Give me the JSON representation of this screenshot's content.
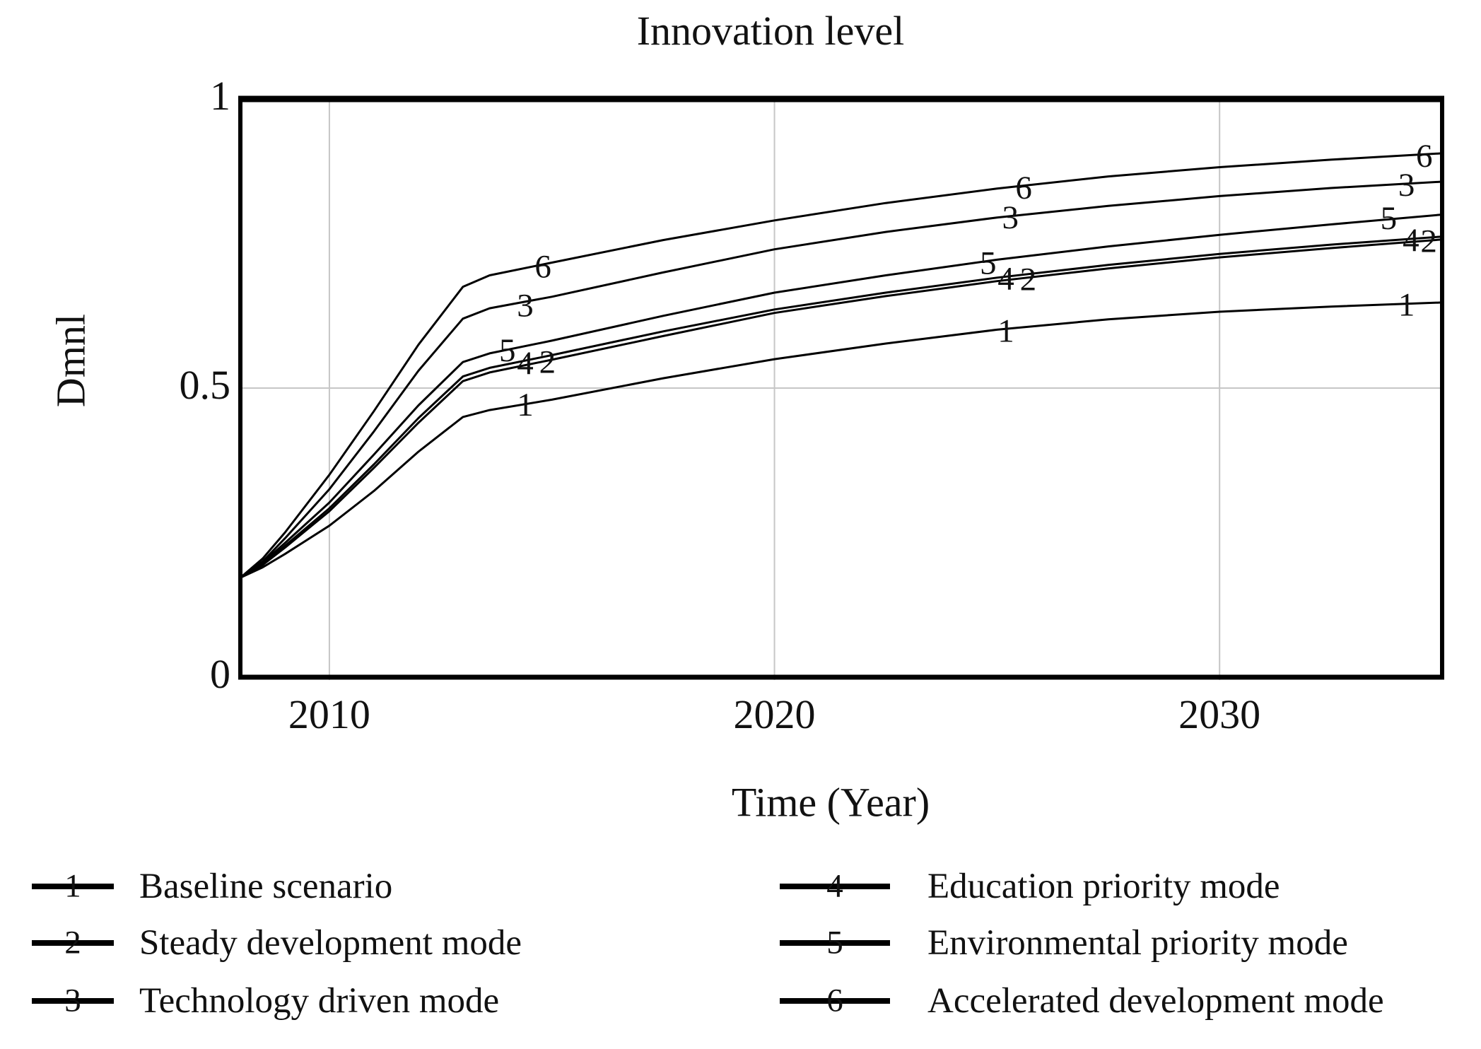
{
  "title": "Innovation level",
  "axes": {
    "ylabel": "Dmnl",
    "xlabel": "Time (Year)"
  },
  "colors": {
    "line": "#000000",
    "grid": "#c6c6c6",
    "border": "#000000",
    "background": "#ffffff",
    "text": "#111111"
  },
  "chart_data": {
    "type": "line",
    "title": "Innovation level",
    "xlabel": "Time (Year)",
    "ylabel": "Dmnl",
    "xlim": [
      2008,
      2035
    ],
    "ylim": [
      0,
      1
    ],
    "grid": true,
    "legend_position": "bottom",
    "x_ticks": [
      {
        "label": "2010",
        "value": 2010
      },
      {
        "label": "2020",
        "value": 2020
      },
      {
        "label": "2030",
        "value": 2030
      }
    ],
    "y_ticks": [
      {
        "label": "1",
        "value": 1
      },
      {
        "label": "0.5",
        "value": 0.5
      },
      {
        "label": "0",
        "value": 0
      }
    ],
    "series": [
      {
        "id": "1",
        "name": "Baseline scenario",
        "points": [
          [
            2008,
            0.172
          ],
          [
            2008.5,
            0.19
          ],
          [
            2009,
            0.213
          ],
          [
            2010,
            0.262
          ],
          [
            2011,
            0.322
          ],
          [
            2012,
            0.39
          ],
          [
            2013,
            0.45
          ],
          [
            2013.6,
            0.462
          ],
          [
            2015,
            0.48
          ],
          [
            2017.5,
            0.517
          ],
          [
            2020,
            0.55
          ],
          [
            2022.5,
            0.577
          ],
          [
            2025,
            0.601
          ],
          [
            2027.5,
            0.619
          ],
          [
            2030,
            0.632
          ],
          [
            2032.5,
            0.641
          ],
          [
            2035,
            0.648
          ]
        ],
        "labels": [
          [
            2014.4,
            0.473
          ],
          [
            2025.2,
            0.601
          ],
          [
            2034.2,
            0.646
          ]
        ]
      },
      {
        "id": "2",
        "name": "Steady development mode",
        "points": [
          [
            2008,
            0.172
          ],
          [
            2008.5,
            0.194
          ],
          [
            2009,
            0.224
          ],
          [
            2010,
            0.287
          ],
          [
            2011,
            0.362
          ],
          [
            2012,
            0.44
          ],
          [
            2013,
            0.512
          ],
          [
            2013.6,
            0.527
          ],
          [
            2015,
            0.549
          ],
          [
            2017.5,
            0.59
          ],
          [
            2020,
            0.63
          ],
          [
            2022.5,
            0.659
          ],
          [
            2025,
            0.685
          ],
          [
            2027.5,
            0.707
          ],
          [
            2030,
            0.726
          ],
          [
            2032.5,
            0.742
          ],
          [
            2035,
            0.757
          ]
        ],
        "labels": [
          [
            2014.9,
            0.547
          ],
          [
            2025.7,
            0.69
          ],
          [
            2034.7,
            0.756
          ]
        ]
      },
      {
        "id": "3",
        "name": "Technology driven mode",
        "points": [
          [
            2008,
            0.172
          ],
          [
            2008.5,
            0.2
          ],
          [
            2009,
            0.24
          ],
          [
            2010,
            0.325
          ],
          [
            2011,
            0.425
          ],
          [
            2012,
            0.53
          ],
          [
            2013,
            0.62
          ],
          [
            2013.6,
            0.638
          ],
          [
            2015,
            0.658
          ],
          [
            2017.5,
            0.7
          ],
          [
            2020,
            0.74
          ],
          [
            2022.5,
            0.77
          ],
          [
            2025,
            0.795
          ],
          [
            2027.5,
            0.815
          ],
          [
            2030,
            0.832
          ],
          [
            2032.5,
            0.846
          ],
          [
            2035,
            0.857
          ]
        ],
        "labels": [
          [
            2014.4,
            0.645
          ],
          [
            2025.3,
            0.797
          ],
          [
            2034.2,
            0.853
          ]
        ]
      },
      {
        "id": "4",
        "name": "Education priority mode",
        "points": [
          [
            2008,
            0.172
          ],
          [
            2008.5,
            0.195
          ],
          [
            2009,
            0.227
          ],
          [
            2010,
            0.292
          ],
          [
            2011,
            0.368
          ],
          [
            2012,
            0.448
          ],
          [
            2013,
            0.52
          ],
          [
            2013.6,
            0.535
          ],
          [
            2015,
            0.557
          ],
          [
            2017.5,
            0.598
          ],
          [
            2020,
            0.636
          ],
          [
            2022.5,
            0.665
          ],
          [
            2025,
            0.691
          ],
          [
            2027.5,
            0.713
          ],
          [
            2030,
            0.732
          ],
          [
            2032.5,
            0.748
          ],
          [
            2035,
            0.762
          ]
        ],
        "labels": [
          [
            2014.4,
            0.545
          ],
          [
            2025.2,
            0.691
          ],
          [
            2034.3,
            0.758
          ]
        ]
      },
      {
        "id": "5",
        "name": "Environmental priority mode",
        "points": [
          [
            2008,
            0.172
          ],
          [
            2008.5,
            0.198
          ],
          [
            2009,
            0.232
          ],
          [
            2010,
            0.302
          ],
          [
            2011,
            0.385
          ],
          [
            2012,
            0.47
          ],
          [
            2013,
            0.545
          ],
          [
            2013.6,
            0.56
          ],
          [
            2015,
            0.582
          ],
          [
            2017.5,
            0.625
          ],
          [
            2020,
            0.665
          ],
          [
            2022.5,
            0.695
          ],
          [
            2025,
            0.722
          ],
          [
            2027.5,
            0.745
          ],
          [
            2030,
            0.765
          ],
          [
            2032.5,
            0.783
          ],
          [
            2035,
            0.8
          ]
        ],
        "labels": [
          [
            2014.0,
            0.567
          ],
          [
            2024.8,
            0.718
          ],
          [
            2033.8,
            0.796
          ]
        ]
      },
      {
        "id": "6",
        "name": "Accelerated development mode",
        "points": [
          [
            2008,
            0.172
          ],
          [
            2008.5,
            0.205
          ],
          [
            2009,
            0.25
          ],
          [
            2010,
            0.35
          ],
          [
            2011,
            0.46
          ],
          [
            2012,
            0.575
          ],
          [
            2013,
            0.675
          ],
          [
            2013.6,
            0.695
          ],
          [
            2015,
            0.717
          ],
          [
            2017.5,
            0.756
          ],
          [
            2020,
            0.79
          ],
          [
            2022.5,
            0.82
          ],
          [
            2025,
            0.845
          ],
          [
            2027.5,
            0.866
          ],
          [
            2030,
            0.882
          ],
          [
            2032.5,
            0.895
          ],
          [
            2035,
            0.906
          ]
        ],
        "labels": [
          [
            2014.8,
            0.712
          ],
          [
            2025.6,
            0.848
          ],
          [
            2034.6,
            0.903
          ]
        ]
      }
    ]
  },
  "legend": {
    "entries": [
      {
        "num": "1",
        "label": "Baseline scenario"
      },
      {
        "num": "2",
        "label": "Steady development mode"
      },
      {
        "num": "3",
        "label": "Technology driven mode"
      },
      {
        "num": "4",
        "label": "Education priority mode"
      },
      {
        "num": "5",
        "label": "Environmental priority mode"
      },
      {
        "num": "6",
        "label": "Accelerated development mode"
      }
    ]
  }
}
